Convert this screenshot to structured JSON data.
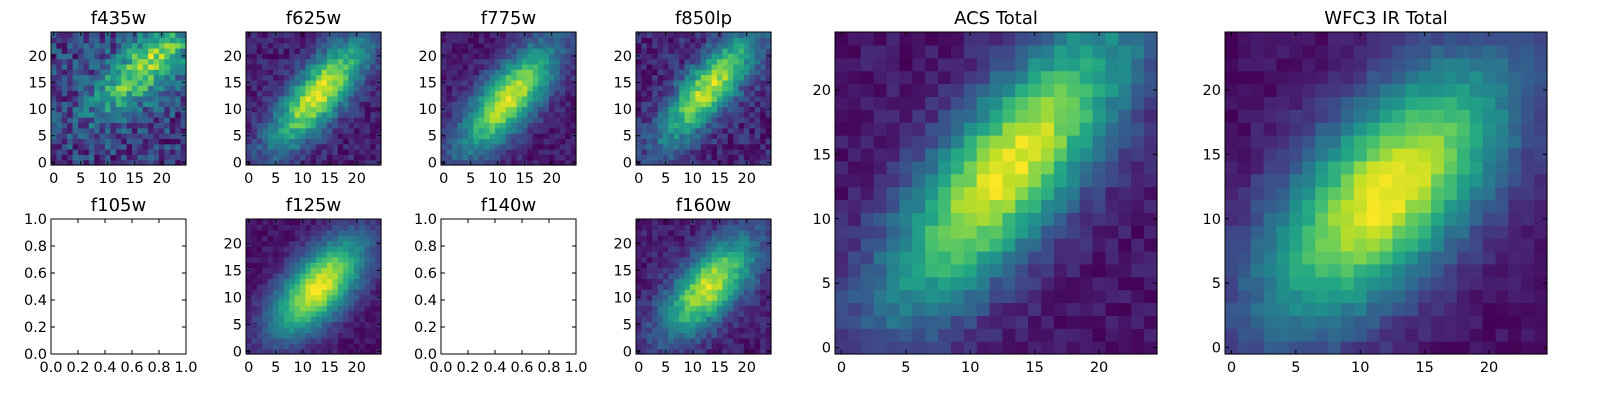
{
  "figure": {
    "type": "image-grid",
    "description_colormap": "viridis"
  },
  "chart_data": [
    {
      "type": "heatmap",
      "title": "f435w",
      "grid_size": 25,
      "has_image": true,
      "peak": [
        17,
        18
      ],
      "slope": 0.9,
      "sigma_major": 8,
      "sigma_minor": 3.2,
      "noise": 0.55,
      "base": 0.35,
      "seed": 11,
      "xticks": [
        "0",
        "5",
        "10",
        "15",
        "20"
      ],
      "yticks": [
        "0",
        "5",
        "10",
        "15",
        "20"
      ],
      "xlim": [
        0,
        24
      ],
      "ylim": [
        0,
        24
      ]
    },
    {
      "type": "heatmap",
      "title": "f625w",
      "grid_size": 25,
      "has_image": true,
      "peak": [
        13,
        13
      ],
      "slope": 1.2,
      "sigma_major": 9,
      "sigma_minor": 3.2,
      "noise": 0.22,
      "base": 0.15,
      "seed": 23,
      "xticks": [
        "0",
        "5",
        "10",
        "15",
        "20"
      ],
      "yticks": [
        "0",
        "5",
        "10",
        "15",
        "20"
      ],
      "xlim": [
        0,
        24
      ],
      "ylim": [
        0,
        24
      ]
    },
    {
      "type": "heatmap",
      "title": "f775w",
      "grid_size": 25,
      "has_image": true,
      "peak": [
        12,
        12
      ],
      "slope": 1.2,
      "sigma_major": 9,
      "sigma_minor": 3.4,
      "noise": 0.18,
      "base": 0.15,
      "seed": 37,
      "xticks": [
        "0",
        "5",
        "10",
        "15",
        "20"
      ],
      "yticks": [
        "0",
        "5",
        "10",
        "15",
        "20"
      ],
      "xlim": [
        0,
        24
      ],
      "ylim": [
        0,
        24
      ]
    },
    {
      "type": "heatmap",
      "title": "f850lp",
      "grid_size": 25,
      "has_image": true,
      "peak": [
        13,
        14
      ],
      "slope": 1.2,
      "sigma_major": 9,
      "sigma_minor": 3.0,
      "noise": 0.28,
      "base": 0.12,
      "seed": 51,
      "xticks": [
        "0",
        "5",
        "10",
        "15",
        "20"
      ],
      "yticks": [
        "0",
        "5",
        "10",
        "15",
        "20"
      ],
      "xlim": [
        0,
        24
      ],
      "ylim": [
        0,
        24
      ]
    },
    {
      "type": "heatmap",
      "title": "f105w",
      "grid_size": 25,
      "has_image": false,
      "xticks": [
        "0.0",
        "0.2",
        "0.4",
        "0.6",
        "0.8",
        "1.0"
      ],
      "yticks": [
        "0.0",
        "0.2",
        "0.4",
        "0.6",
        "0.8",
        "1.0"
      ],
      "xlim": [
        0,
        1
      ],
      "ylim": [
        0,
        1
      ]
    },
    {
      "type": "heatmap",
      "title": "f125w",
      "grid_size": 25,
      "has_image": true,
      "peak": [
        13,
        12
      ],
      "slope": 1.1,
      "sigma_major": 8,
      "sigma_minor": 3.8,
      "noise": 0.12,
      "base": 0.12,
      "seed": 67,
      "xticks": [
        "0",
        "5",
        "10",
        "15",
        "20"
      ],
      "yticks": [
        "0",
        "5",
        "10",
        "15",
        "20"
      ],
      "xlim": [
        0,
        24
      ],
      "ylim": [
        0,
        24
      ]
    },
    {
      "type": "heatmap",
      "title": "f140w",
      "grid_size": 25,
      "has_image": false,
      "xticks": [
        "0.0",
        "0.2",
        "0.4",
        "0.6",
        "0.8",
        "1.0"
      ],
      "yticks": [
        "0.0",
        "0.2",
        "0.4",
        "0.6",
        "0.8",
        "1.0"
      ],
      "xlim": [
        0,
        1
      ],
      "ylim": [
        0,
        1
      ]
    },
    {
      "type": "heatmap",
      "title": "f160w",
      "grid_size": 25,
      "has_image": true,
      "peak": [
        13,
        12
      ],
      "slope": 1.1,
      "sigma_major": 8,
      "sigma_minor": 3.6,
      "noise": 0.2,
      "base": 0.1,
      "seed": 79,
      "xticks": [
        "0",
        "5",
        "10",
        "15",
        "20"
      ],
      "yticks": [
        "0",
        "5",
        "10",
        "15",
        "20"
      ],
      "xlim": [
        0,
        24
      ],
      "ylim": [
        0,
        24
      ]
    },
    {
      "type": "heatmap",
      "title": "ACS Total",
      "grid_size": 25,
      "has_image": true,
      "peak": [
        13,
        14
      ],
      "slope": 1.25,
      "sigma_major": 10,
      "sigma_minor": 3.4,
      "noise": 0.14,
      "base": 0.12,
      "seed": 97,
      "xticks": [
        "0",
        "5",
        "10",
        "15",
        "20"
      ],
      "yticks": [
        "0",
        "5",
        "10",
        "15",
        "20"
      ],
      "xlim": [
        0,
        24
      ],
      "ylim": [
        0,
        24
      ]
    },
    {
      "type": "heatmap",
      "title": "WFC3 IR Total",
      "grid_size": 25,
      "has_image": true,
      "peak": [
        12,
        12
      ],
      "slope": 1.1,
      "sigma_major": 9,
      "sigma_minor": 4.2,
      "noise": 0.1,
      "base": 0.1,
      "seed": 113,
      "xticks": [
        "0",
        "5",
        "10",
        "15",
        "20"
      ],
      "yticks": [
        "0",
        "5",
        "10",
        "15",
        "20"
      ],
      "xlim": [
        0,
        24
      ],
      "ylim": [
        0,
        24
      ]
    }
  ]
}
